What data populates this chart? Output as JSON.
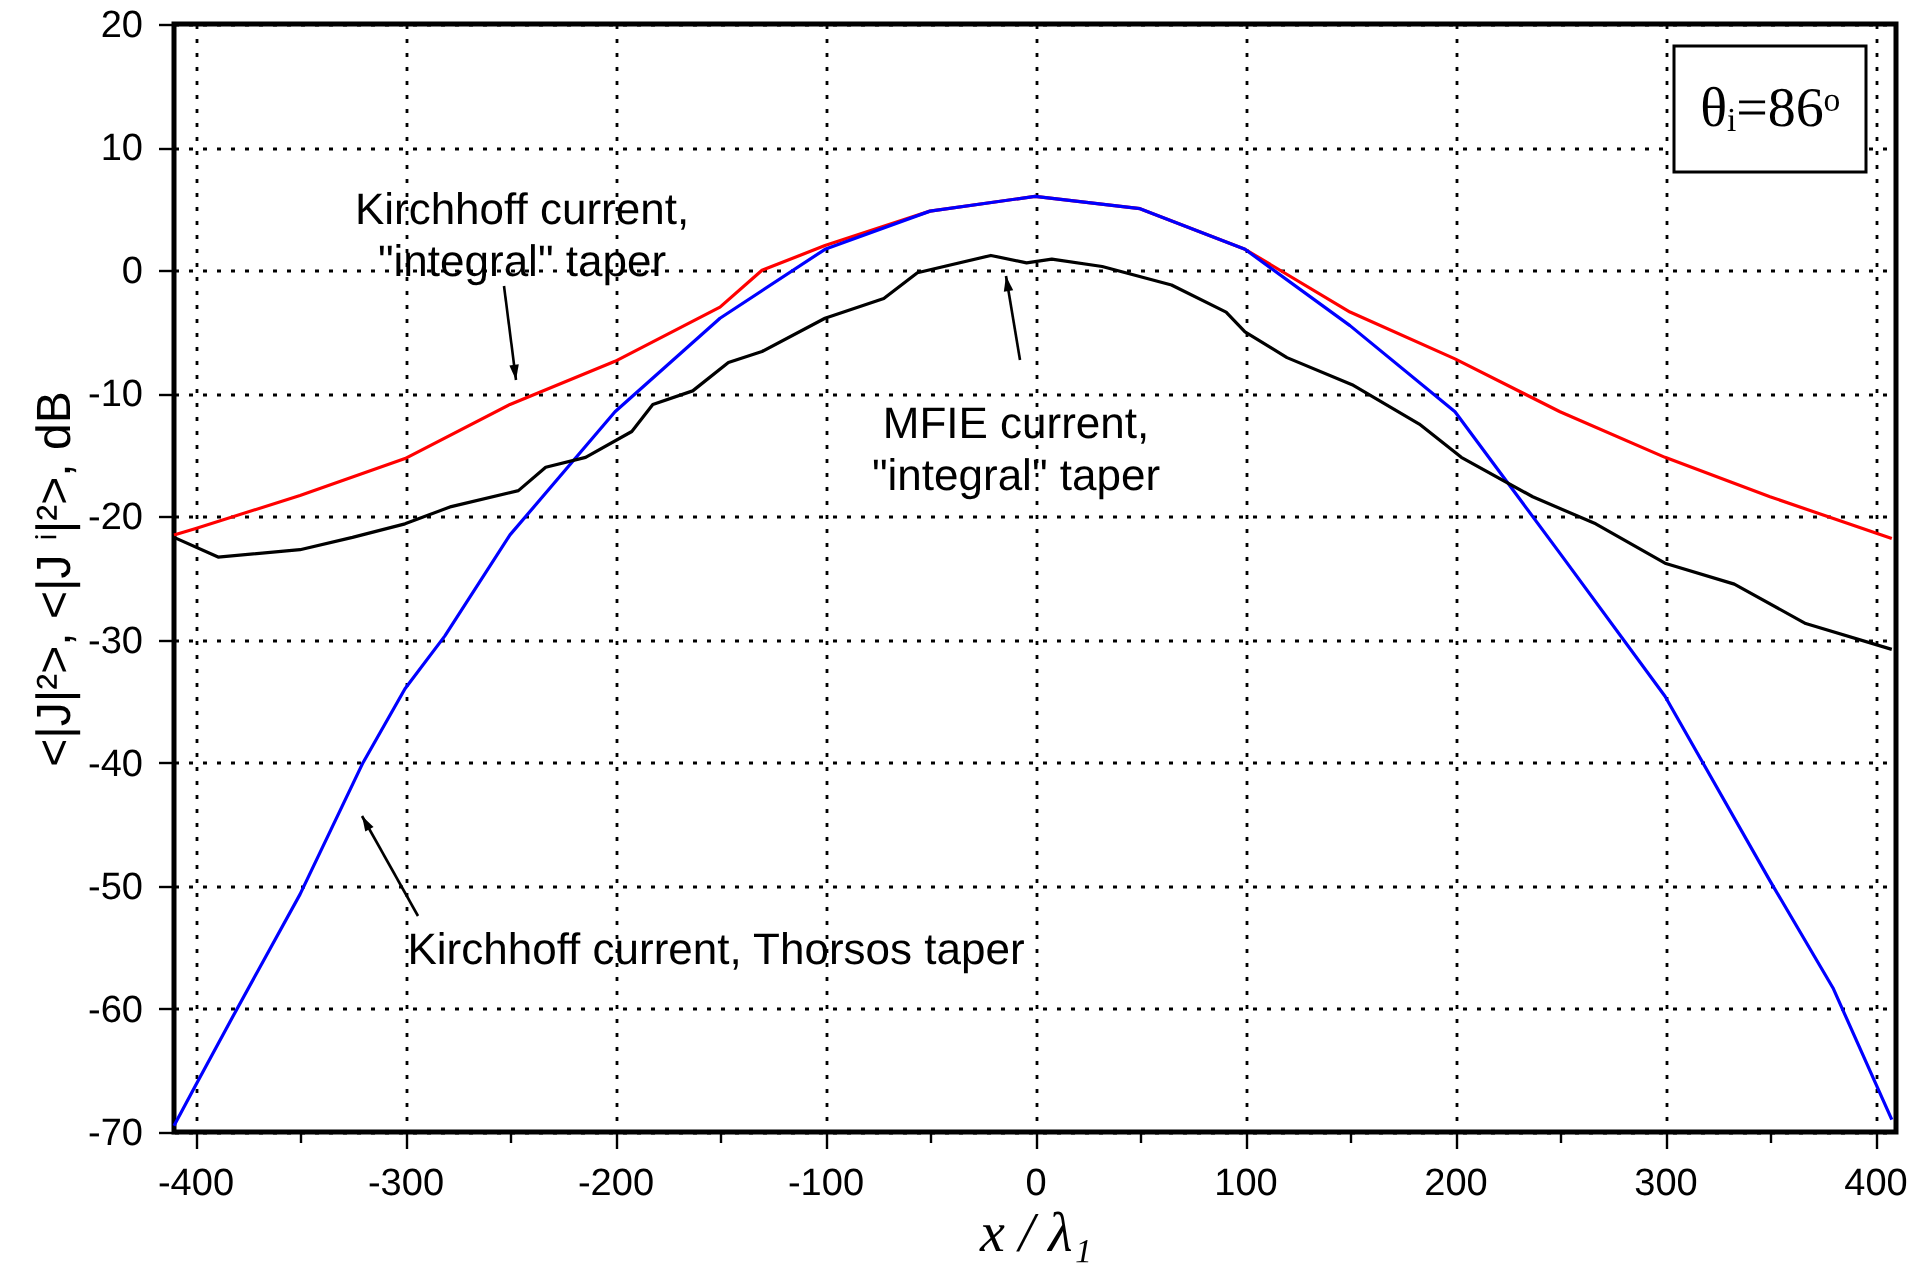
{
  "chart_data": {
    "type": "line",
    "xlabel": "x / λ₁",
    "ylabel": "<|J|²>,  <|J ⁱ|²>, dB",
    "xlim": [
      -410,
      410
    ],
    "ylim": [
      -70,
      20
    ],
    "xticks": [
      -400,
      {
        "value": -350,
        "label": null
      },
      -300,
      {
        "value": -250,
        "label": null
      },
      -200,
      {
        "value": -150,
        "label": null
      },
      -100,
      {
        "value": -50,
        "label": null
      },
      0,
      {
        "value": 50,
        "label": null
      },
      100,
      {
        "value": 150,
        "label": null
      },
      200,
      {
        "value": 250,
        "label": null
      },
      300,
      {
        "value": 350,
        "label": null
      },
      400
    ],
    "yticks": [
      -70,
      -60,
      -50,
      -40,
      -30,
      -20,
      -10,
      0,
      10,
      20
    ],
    "grid": true,
    "line_style": "solid",
    "series": [
      {
        "color": "#ff0000",
        "x": [
          -410,
          -400,
          -350,
          -300,
          -250,
          -200,
          -150,
          -130,
          -100,
          -50,
          0,
          50,
          100,
          150,
          200,
          250,
          300,
          350,
          408
        ],
        "values": [
          -21.5,
          -21,
          -18.3,
          -15.3,
          -10.9,
          -7.4,
          -3,
          0,
          2,
          4.8,
          6,
          5,
          1.7,
          -3.4,
          -7.2,
          -11.5,
          -15.2,
          -18.4,
          -21.8
        ]
      },
      {
        "color": "#0000ff",
        "x": [
          -410,
          -400,
          -380,
          -350,
          -320,
          -300,
          -281,
          -250,
          -200,
          -150,
          -100,
          -50,
          0,
          50,
          100,
          150,
          200,
          250,
          300,
          350,
          380,
          408
        ],
        "values": [
          -69.5,
          -66.3,
          -60,
          -50.7,
          -40,
          -34,
          -29.7,
          -21.5,
          -11.5,
          -3.9,
          1.7,
          4.8,
          6,
          5,
          1.7,
          -4.5,
          -11.5,
          -23,
          -34.6,
          -49.6,
          -58.3,
          -69
        ]
      },
      {
        "color": "#000000",
        "x": [
          -410,
          -389,
          -350,
          -325,
          -300,
          -278,
          -246,
          -233,
          -214,
          -192,
          -182,
          -163,
          -146,
          -130,
          -100,
          -72,
          -56,
          -21,
          -4,
          8,
          32,
          65,
          91,
          100,
          120,
          151,
          183,
          203,
          237,
          267,
          300,
          333,
          367,
          408
        ],
        "values": [
          -21.7,
          -23.3,
          -22.7,
          -21.7,
          -20.6,
          -19.2,
          -17.9,
          -16,
          -15.2,
          -13.1,
          -10.9,
          -9.8,
          -7.5,
          -6.6,
          -3.9,
          -2.3,
          -0.2,
          1.2,
          0.6,
          0.9,
          0.3,
          -1.2,
          -3.4,
          -5,
          -7.1,
          -9.3,
          -12.5,
          -15.2,
          -18.4,
          -20.6,
          -23.8,
          -25.5,
          -28.7,
          -30.8
        ]
      }
    ],
    "annotations": [
      "Kirchhoff current,\n\"integral\" taper",
      "MFIE current,\n\"integral\" taper",
      "Kirchhoff current, Thorsos taper",
      "θᵢ=86ᵒ"
    ]
  }
}
